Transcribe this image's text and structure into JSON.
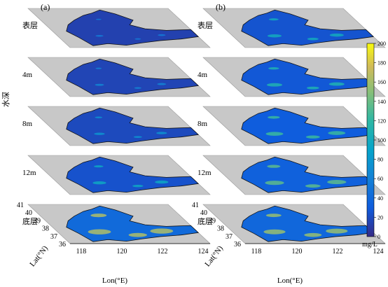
{
  "chart_data": {
    "type": "heatmap",
    "panels": [
      {
        "label": "(a)",
        "layers": [
          {
            "name": "表层",
            "intensity": 0.28
          },
          {
            "name": "4m",
            "intensity": 0.32
          },
          {
            "name": "8m",
            "intensity": 0.38
          },
          {
            "name": "12m",
            "intensity": 0.48
          },
          {
            "name": "底层",
            "intensity": 0.82
          }
        ]
      },
      {
        "label": "(b)",
        "layers": [
          {
            "name": "表层",
            "intensity": 0.5
          },
          {
            "name": "4m",
            "intensity": 0.55
          },
          {
            "name": "8m",
            "intensity": 0.62
          },
          {
            "name": "12m",
            "intensity": 0.68
          },
          {
            "name": "底层",
            "intensity": 0.78
          }
        ]
      }
    ],
    "zlabel": "水深",
    "xlabel": "Lon(°E)",
    "ylabel": "Lat(°N)",
    "xticks": [
      "118",
      "120",
      "122",
      "124"
    ],
    "yticks": [
      "36",
      "37",
      "38",
      "39",
      "40",
      "41"
    ],
    "colorbar": {
      "ticks": [
        "0",
        "20",
        "40",
        "60",
        "80",
        "100",
        "120",
        "140",
        "160",
        "180",
        "200"
      ],
      "unit": "mg/L",
      "range": [
        0,
        200
      ]
    }
  }
}
